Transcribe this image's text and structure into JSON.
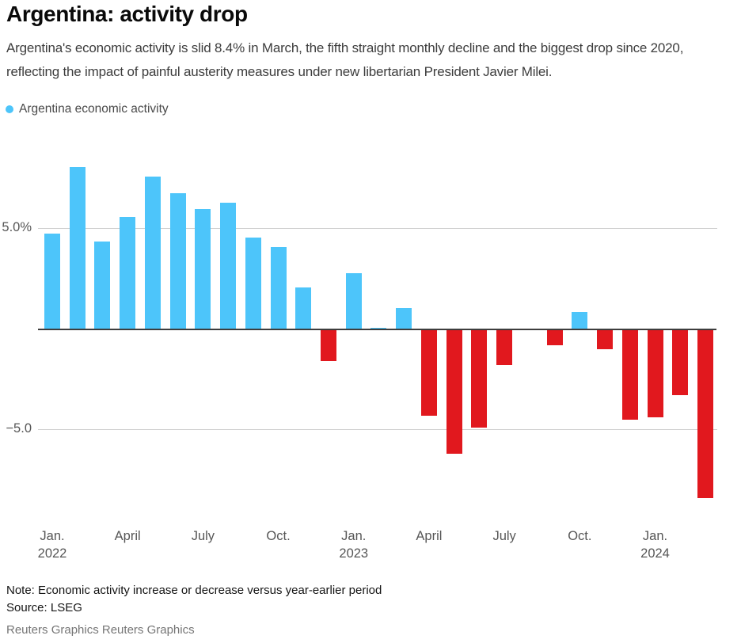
{
  "header": {
    "title": "Argentina: activity drop",
    "subtitle": "Argentina's economic activity is slid 8.4% in March, the fifth straight monthly decline and the biggest drop since 2020, reflecting the impact of painful austerity measures under new libertarian President Javier Milei."
  },
  "legend": {
    "label": "Argentina economic activity"
  },
  "chart_data": {
    "type": "bar",
    "title": "Argentina: activity drop",
    "series_name": "Argentina economic activity",
    "unit": "percent change versus year-earlier period",
    "x": [
      "Jan. 2022",
      "Feb. 2022",
      "Mar. 2022",
      "Apr. 2022",
      "May 2022",
      "Jun. 2022",
      "Jul. 2022",
      "Aug. 2022",
      "Sep. 2022",
      "Oct. 2022",
      "Nov. 2022",
      "Dec. 2022",
      "Jan. 2023",
      "Feb. 2023",
      "Mar. 2023",
      "Apr. 2023",
      "May 2023",
      "Jun. 2023",
      "Jul. 2023",
      "Aug. 2023",
      "Sep. 2023",
      "Oct. 2023",
      "Nov. 2023",
      "Dec. 2023",
      "Jan. 2024",
      "Feb. 2024",
      "Mar. 2024"
    ],
    "values": [
      4.8,
      8.1,
      4.4,
      5.6,
      7.6,
      6.8,
      6.0,
      6.3,
      4.6,
      4.1,
      2.1,
      -1.6,
      2.8,
      0.1,
      1.1,
      -4.3,
      -6.2,
      -4.9,
      -1.8,
      0.0,
      -0.8,
      0.9,
      -1.0,
      -4.5,
      -4.4,
      -3.3,
      -8.4
    ],
    "ylim": [
      -9.5,
      9.7
    ],
    "yticks": [
      {
        "value": 5,
        "label": "5.0%"
      },
      {
        "value": -5,
        "label": "−5.0"
      }
    ],
    "xticks": [
      {
        "index": 0,
        "lines": [
          "Jan.",
          "2022"
        ]
      },
      {
        "index": 3,
        "lines": [
          "April"
        ]
      },
      {
        "index": 6,
        "lines": [
          "July"
        ]
      },
      {
        "index": 9,
        "lines": [
          "Oct."
        ]
      },
      {
        "index": 12,
        "lines": [
          "Jan.",
          "2023"
        ]
      },
      {
        "index": 15,
        "lines": [
          "April"
        ]
      },
      {
        "index": 18,
        "lines": [
          "July"
        ]
      },
      {
        "index": 21,
        "lines": [
          "Oct."
        ]
      },
      {
        "index": 24,
        "lines": [
          "Jan.",
          "2024"
        ]
      }
    ],
    "grid": "horizontal gridlines at +5 and -5 only; zero axis emphasized",
    "legend_position": "top-left",
    "colors": {
      "positive": "#4dc5fa",
      "negative": "#e1181e",
      "zero_axis": "#3d3d3d",
      "gridline": "#cfcfcf"
    }
  },
  "footer": {
    "note": "Note: Economic activity increase or decrease versus year-earlier period",
    "source": "Source: LSEG",
    "credit": "Reuters Graphics Reuters Graphics"
  }
}
